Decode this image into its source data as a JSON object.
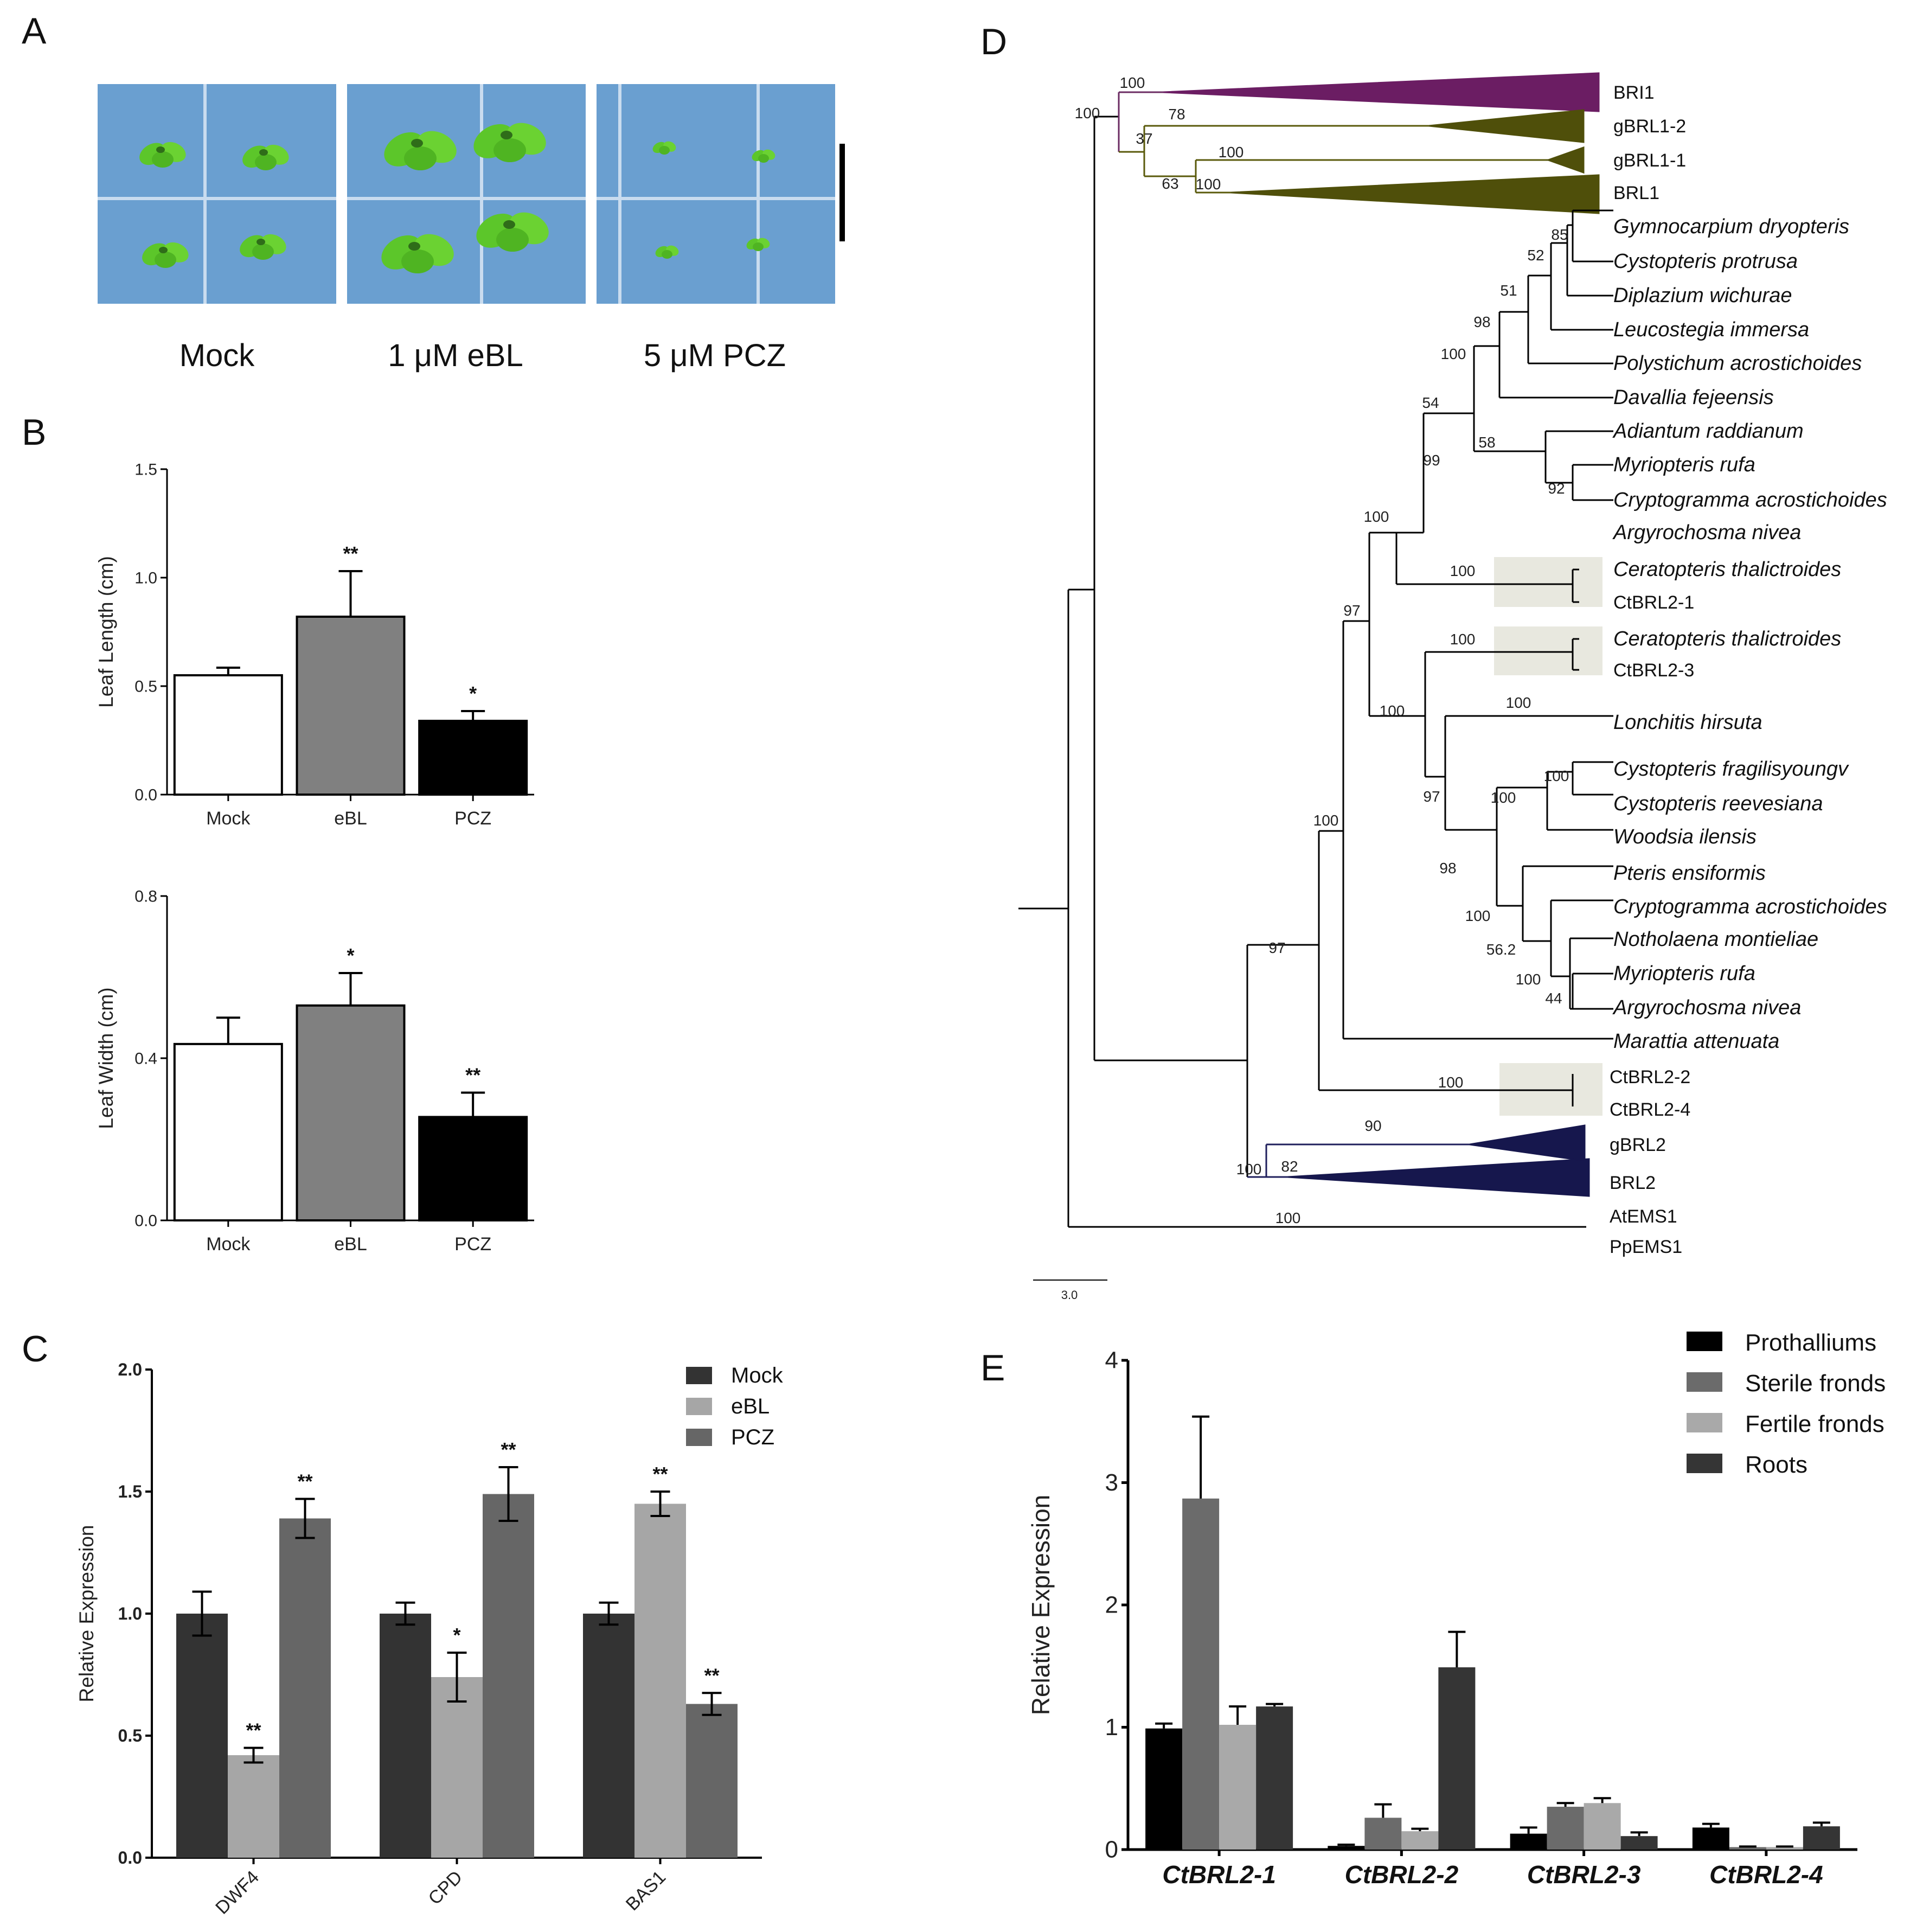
{
  "panels": {
    "A": "A",
    "B": "B",
    "C": "C",
    "D": "D",
    "E": "E"
  },
  "panelA": {
    "labels": [
      "Mock",
      "1 μM eBL",
      "5 μM PCZ"
    ],
    "photo_bg": "#6a9fd0",
    "leaf_color": "#5cc62a"
  },
  "chart_data": [
    {
      "id": "B_length",
      "type": "bar",
      "title": "",
      "xlabel": "",
      "ylabel": "Leaf Length (cm)",
      "ylim": [
        0,
        1.5
      ],
      "yticks": [
        "0.0",
        "0.5",
        "1.0",
        "1.5"
      ],
      "categories": [
        "Mock",
        "eBL",
        "PCZ"
      ],
      "values": [
        0.55,
        0.82,
        0.34
      ],
      "errors": [
        0.035,
        0.21,
        0.045
      ],
      "significance": [
        "",
        "**",
        "*"
      ],
      "colors": [
        "#ffffff",
        "#808080",
        "#000000"
      ]
    },
    {
      "id": "B_width",
      "type": "bar",
      "title": "",
      "xlabel": "",
      "ylabel": "Leaf Width (cm)",
      "ylim": [
        0,
        0.8
      ],
      "yticks": [
        "0.0",
        "0.4",
        "0.8"
      ],
      "categories": [
        "Mock",
        "eBL",
        "PCZ"
      ],
      "values": [
        0.435,
        0.53,
        0.255
      ],
      "errors": [
        0.065,
        0.08,
        0.06
      ],
      "significance": [
        "",
        "*",
        "**"
      ],
      "colors": [
        "#ffffff",
        "#808080",
        "#000000"
      ]
    },
    {
      "id": "C",
      "type": "bar",
      "title": "",
      "xlabel": "",
      "ylabel": "Relative Expression",
      "ylim": [
        0,
        2.0
      ],
      "yticks": [
        "0.0",
        "0.5",
        "1.0",
        "1.5",
        "2.0"
      ],
      "categories": [
        "DWF4",
        "CPD",
        "BAS1"
      ],
      "series": [
        {
          "name": "Mock",
          "color": "#333333",
          "values": [
            1.0,
            1.0,
            1.0
          ],
          "errors": [
            0.09,
            0.045,
            0.045
          ],
          "significance": [
            "",
            "",
            ""
          ]
        },
        {
          "name": "eBL",
          "color": "#a6a6a6",
          "values": [
            0.42,
            0.74,
            1.45
          ],
          "errors": [
            0.03,
            0.1,
            0.05
          ],
          "significance": [
            "**",
            "*",
            "**"
          ]
        },
        {
          "name": "PCZ",
          "color": "#666666",
          "values": [
            1.39,
            1.49,
            0.63
          ],
          "errors": [
            0.08,
            0.11,
            0.045
          ],
          "significance": [
            "**",
            "**",
            "**"
          ]
        }
      ]
    },
    {
      "id": "E",
      "type": "bar",
      "title": "",
      "xlabel": "",
      "ylabel": "Relative Expression",
      "ylim": [
        0,
        4
      ],
      "yticks": [
        "0",
        "1",
        "2",
        "3",
        "4"
      ],
      "categories": [
        "CtBRL2-1",
        "CtBRL2-2",
        "CtBRL2-3",
        "CtBRL2-4"
      ],
      "series": [
        {
          "name": "Prothalliums",
          "color": "#000000",
          "values": [
            0.99,
            0.03,
            0.13,
            0.18
          ],
          "errors": [
            0.04,
            0.01,
            0.05,
            0.03
          ]
        },
        {
          "name": "Sterile fronds",
          "color": "#6b6b6b",
          "values": [
            2.87,
            0.26,
            0.35,
            0.02
          ],
          "errors": [
            0.67,
            0.11,
            0.03,
            0.005
          ]
        },
        {
          "name": "Fertile fronds",
          "color": "#a9a9a9",
          "values": [
            1.02,
            0.15,
            0.38,
            0.02
          ],
          "errors": [
            0.15,
            0.02,
            0.04,
            0.005
          ]
        },
        {
          "name": "Roots",
          "color": "#353535",
          "values": [
            1.17,
            1.49,
            0.11,
            0.19
          ],
          "errors": [
            0.02,
            0.29,
            0.03,
            0.03
          ]
        }
      ]
    }
  ],
  "tree": {
    "scale_label": "3.0",
    "taxa": [
      {
        "label": "BRI1",
        "style": "clade",
        "color": "#7b1a6e"
      },
      {
        "label": "gBRL1-2",
        "style": "clade",
        "color": "#5a5a0b"
      },
      {
        "label": "gBRL1-1",
        "style": "clade",
        "color": "#5a5a0b"
      },
      {
        "label": "BRL1",
        "style": "clade",
        "color": "#5a5a0b"
      },
      {
        "label": "Gymnocarpium dryopteris",
        "style": "italic"
      },
      {
        "label": "Cystopteris protrusa",
        "style": "italic"
      },
      {
        "label": "Diplazium wichurae",
        "style": "italic"
      },
      {
        "label": "Leucostegia immersa",
        "style": "italic"
      },
      {
        "label": "Polystichum acrostichoides",
        "style": "italic"
      },
      {
        "label": "Davallia fejeensis",
        "style": "italic"
      },
      {
        "label": "Adiantum raddianum",
        "style": "italic"
      },
      {
        "label": "Myriopteris rufa",
        "style": "italic"
      },
      {
        "label": "Cryptogramma acrostichoides",
        "style": "italic"
      },
      {
        "label": "Argyrochosma nivea",
        "style": "italic"
      },
      {
        "label": "Ceratopteris thalictroides",
        "style": "italic"
      },
      {
        "label": "CtBRL2-1",
        "style": "plain"
      },
      {
        "label": "Ceratopteris thalictroides",
        "style": "italic"
      },
      {
        "label": "CtBRL2-3",
        "style": "plain"
      },
      {
        "label": "Lonchitis hirsuta",
        "style": "italic"
      },
      {
        "label": "Cystopteris fragilisyoungv",
        "style": "italic"
      },
      {
        "label": "Cystopteris reevesiana",
        "style": "italic"
      },
      {
        "label": "Woodsia ilensis",
        "style": "italic"
      },
      {
        "label": "Pteris ensiformis",
        "style": "italic"
      },
      {
        "label": "Cryptogramma acrostichoides",
        "style": "italic"
      },
      {
        "label": "Notholaena montieliae",
        "style": "italic"
      },
      {
        "label": "Myriopteris rufa",
        "style": "italic"
      },
      {
        "label": "Argyrochosma nivea",
        "style": "italic"
      },
      {
        "label": "Marattia attenuata",
        "style": "italic"
      },
      {
        "label": "CtBRL2-2",
        "style": "plain"
      },
      {
        "label": "CtBRL2-4",
        "style": "plain"
      },
      {
        "label": "gBRL2",
        "style": "clade",
        "color": "#1f1f5c"
      },
      {
        "label": "BRL2",
        "style": "clade",
        "color": "#1f1f5c"
      },
      {
        "label": "AtEMS1",
        "style": "plain"
      },
      {
        "label": "PpEMS1",
        "style": "plain"
      }
    ],
    "supports": [
      "100",
      "100",
      "37",
      "78",
      "100",
      "63",
      "100",
      "85",
      "52",
      "51",
      "98",
      "100",
      "54",
      "58",
      "92",
      "99",
      "100",
      "100",
      "97",
      "100",
      "100",
      "100",
      "97",
      "100",
      "100",
      "98",
      "100",
      "56.2",
      "100",
      "44",
      "100",
      "97",
      "100",
      "90",
      "82",
      "100",
      "100"
    ]
  }
}
